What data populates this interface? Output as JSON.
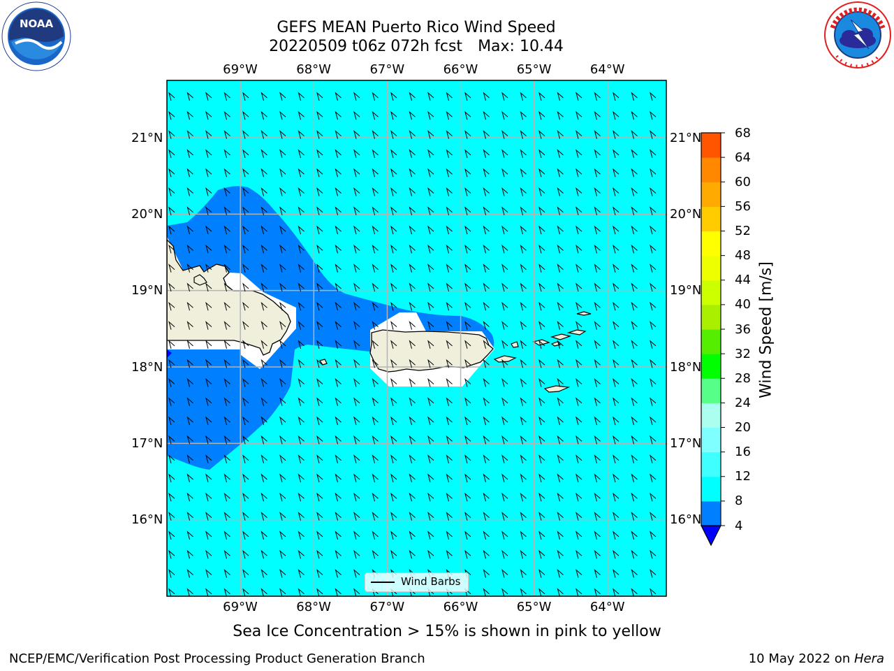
{
  "header": {
    "title_line1": "GEFS MEAN Puerto Rico Wind Speed",
    "title_line2_run": "20220509 t06z 072h fcst",
    "title_line2_max": "Max: 10.44"
  },
  "logos": {
    "left": "noaa-logo",
    "left_text": "NOAA",
    "right": "nws-logo"
  },
  "map": {
    "projection": "PlateCarree",
    "extent": {
      "lon_min": -70.0,
      "lon_max": -63.2,
      "lat_min": 15.0,
      "lat_max": 21.75
    },
    "lon_ticks": [
      {
        "value": -69,
        "label": "69°W"
      },
      {
        "value": -68,
        "label": "68°W"
      },
      {
        "value": -67,
        "label": "67°W"
      },
      {
        "value": -66,
        "label": "66°W"
      },
      {
        "value": -65,
        "label": "65°W"
      },
      {
        "value": -64,
        "label": "64°W"
      }
    ],
    "lat_ticks": [
      {
        "value": 21,
        "label": "21°N"
      },
      {
        "value": 20,
        "label": "20°N"
      },
      {
        "value": 19,
        "label": "19°N"
      },
      {
        "value": 18,
        "label": "18°N"
      },
      {
        "value": 17,
        "label": "17°N"
      },
      {
        "value": 16,
        "label": "16°N"
      }
    ],
    "gridlines": true,
    "background_field": {
      "range_ms": [
        8,
        12
      ],
      "color": "#00ffff"
    },
    "low_wind_region": {
      "range_ms": [
        4,
        8
      ],
      "color": "#007fff"
    },
    "land_color": "#efefdc",
    "barbs": {
      "direction": "from east-northeast",
      "style": "single half/full barb"
    },
    "legend": {
      "entry": "Wind Barbs",
      "placement": "bottom-center"
    }
  },
  "colorbar": {
    "label": "Wind Speed [m/s]",
    "ticks": [
      "4",
      "8",
      "12",
      "16",
      "20",
      "24",
      "28",
      "32",
      "36",
      "40",
      "44",
      "48",
      "52",
      "56",
      "60",
      "64",
      "68"
    ],
    "colors": [
      "#007fff",
      "#00ffff",
      "#3fffff",
      "#7fffff",
      "#aaffee",
      "#55ff88",
      "#00ff00",
      "#55ee00",
      "#aaee00",
      "#ccff00",
      "#eeff00",
      "#ffff00",
      "#ffcc00",
      "#ffaa00",
      "#ff8800",
      "#ff5500",
      "#ff2200",
      "#ff0000"
    ],
    "under_color": "#0000ff"
  },
  "footer": {
    "note": "Sea Ice Concentration > 15% is shown in pink to yellow",
    "left": "NCEP/EMC/Verification Post Processing Product Generation Branch",
    "right_prefix": "10 May 2022 on ",
    "right_host": "Hera"
  }
}
